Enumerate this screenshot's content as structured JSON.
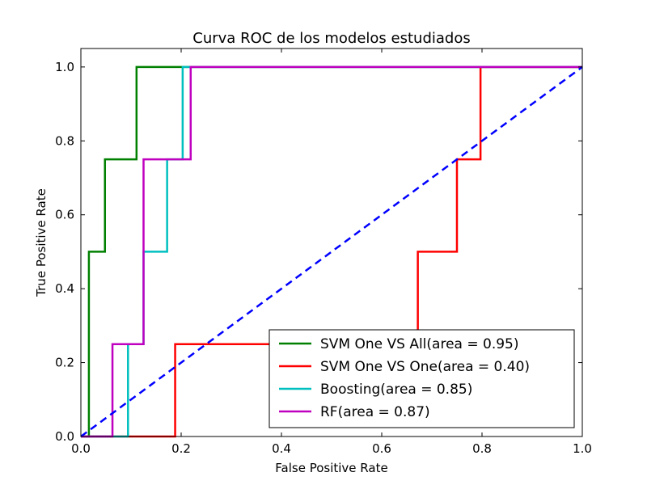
{
  "chart_data": {
    "type": "line",
    "title": "Curva ROC de los modelos estudiados",
    "xlabel": "False Positive Rate",
    "ylabel": "True Positive Rate",
    "xlim": [
      0.0,
      1.0
    ],
    "ylim": [
      0.0,
      1.05
    ],
    "xticks": [
      "0.0",
      "0.2",
      "0.4",
      "0.6",
      "0.8",
      "1.0"
    ],
    "yticks": [
      "0.0",
      "0.2",
      "0.4",
      "0.6",
      "0.8",
      "1.0"
    ],
    "grid": false,
    "legend_position": "lower-right",
    "series": [
      {
        "name": "SVM One VS All(area = 0.95)",
        "color": "#008000",
        "x": [
          0.0,
          0.016,
          0.016,
          0.048,
          0.048,
          0.111,
          0.111,
          1.0
        ],
        "y": [
          0.0,
          0.0,
          0.5,
          0.5,
          0.75,
          0.75,
          1.0,
          1.0
        ]
      },
      {
        "name": "SVM One VS One(area = 0.40)",
        "color": "#ff0000",
        "x": [
          0.0,
          0.188,
          0.188,
          0.672,
          0.672,
          0.75,
          0.75,
          0.797,
          0.797,
          1.0
        ],
        "y": [
          0.0,
          0.0,
          0.25,
          0.25,
          0.5,
          0.5,
          0.75,
          0.75,
          1.0,
          1.0
        ]
      },
      {
        "name": "Boosting(area = 0.85)",
        "color": "#00bfbf",
        "x": [
          0.0,
          0.094,
          0.094,
          0.125,
          0.125,
          0.172,
          0.172,
          0.203,
          0.203,
          1.0
        ],
        "y": [
          0.0,
          0.0,
          0.25,
          0.25,
          0.5,
          0.5,
          0.75,
          0.75,
          1.0,
          1.0
        ]
      },
      {
        "name": "RF(area = 0.87)",
        "color": "#bf00bf",
        "x": [
          0.0,
          0.063,
          0.063,
          0.125,
          0.125,
          0.219,
          0.219,
          1.0
        ],
        "y": [
          0.0,
          0.0,
          0.25,
          0.25,
          0.75,
          0.75,
          1.0,
          1.0
        ]
      }
    ],
    "reference_line": {
      "color": "#0000ff",
      "style": "dashed",
      "x": [
        0.0,
        1.0
      ],
      "y": [
        0.0,
        1.0
      ]
    }
  }
}
